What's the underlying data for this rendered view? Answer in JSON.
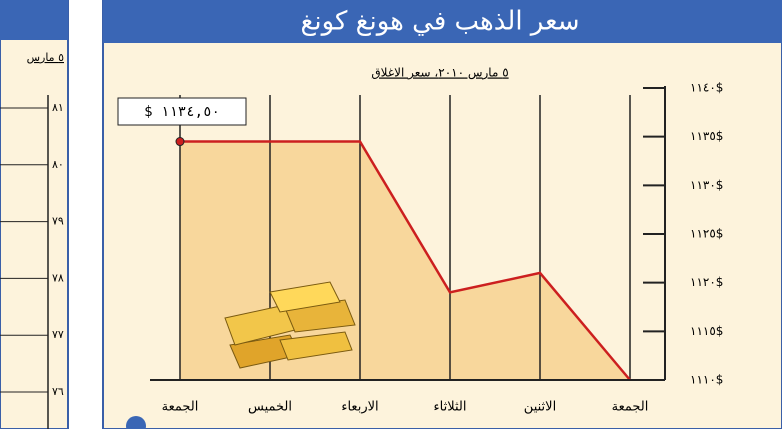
{
  "chart_data": [
    {
      "type": "line",
      "title": "سعر الذهب في هونغ كونغ",
      "subtitle": "٥ مارس ٢٠١٠، سعر الاغلاق",
      "categories": [
        "الجمعة",
        "الخميس",
        "الاربعاء",
        "الثلاثاء",
        "الاثنين",
        "الجمعة"
      ],
      "values": [
        1134.5,
        1134.5,
        1134.5,
        1119,
        1121,
        1110
      ],
      "value_labels": [
        "$ ١١٣٤,٥٠",
        null,
        null,
        null,
        null,
        null
      ],
      "color": "#cc1f1f",
      "ylim": [
        1110,
        1140
      ],
      "yticks": [
        {
          "value": 1110,
          "label": "١١١٠$"
        },
        {
          "value": 1115,
          "label": "١١١٥$"
        },
        {
          "value": 1120,
          "label": "١١٢٠$"
        },
        {
          "value": 1125,
          "label": "١١٢٥$"
        },
        {
          "value": 1130,
          "label": "١١٣٠$"
        },
        {
          "value": 1135,
          "label": "١١٣٥$"
        },
        {
          "value": 1140,
          "label": "١١٤٠$"
        }
      ]
    },
    {
      "type": "line",
      "subtitle": "٥ مارس",
      "ylim": [
        76,
        81
      ],
      "yticks": [
        {
          "value": 76,
          "label": "٧٦"
        },
        {
          "value": 77,
          "label": "٧٧"
        },
        {
          "value": 78,
          "label": "٧٨"
        },
        {
          "value": 79,
          "label": "٧٩"
        },
        {
          "value": 80,
          "label": "٨٠"
        },
        {
          "value": 81,
          "label": "٨١"
        }
      ]
    }
  ]
}
